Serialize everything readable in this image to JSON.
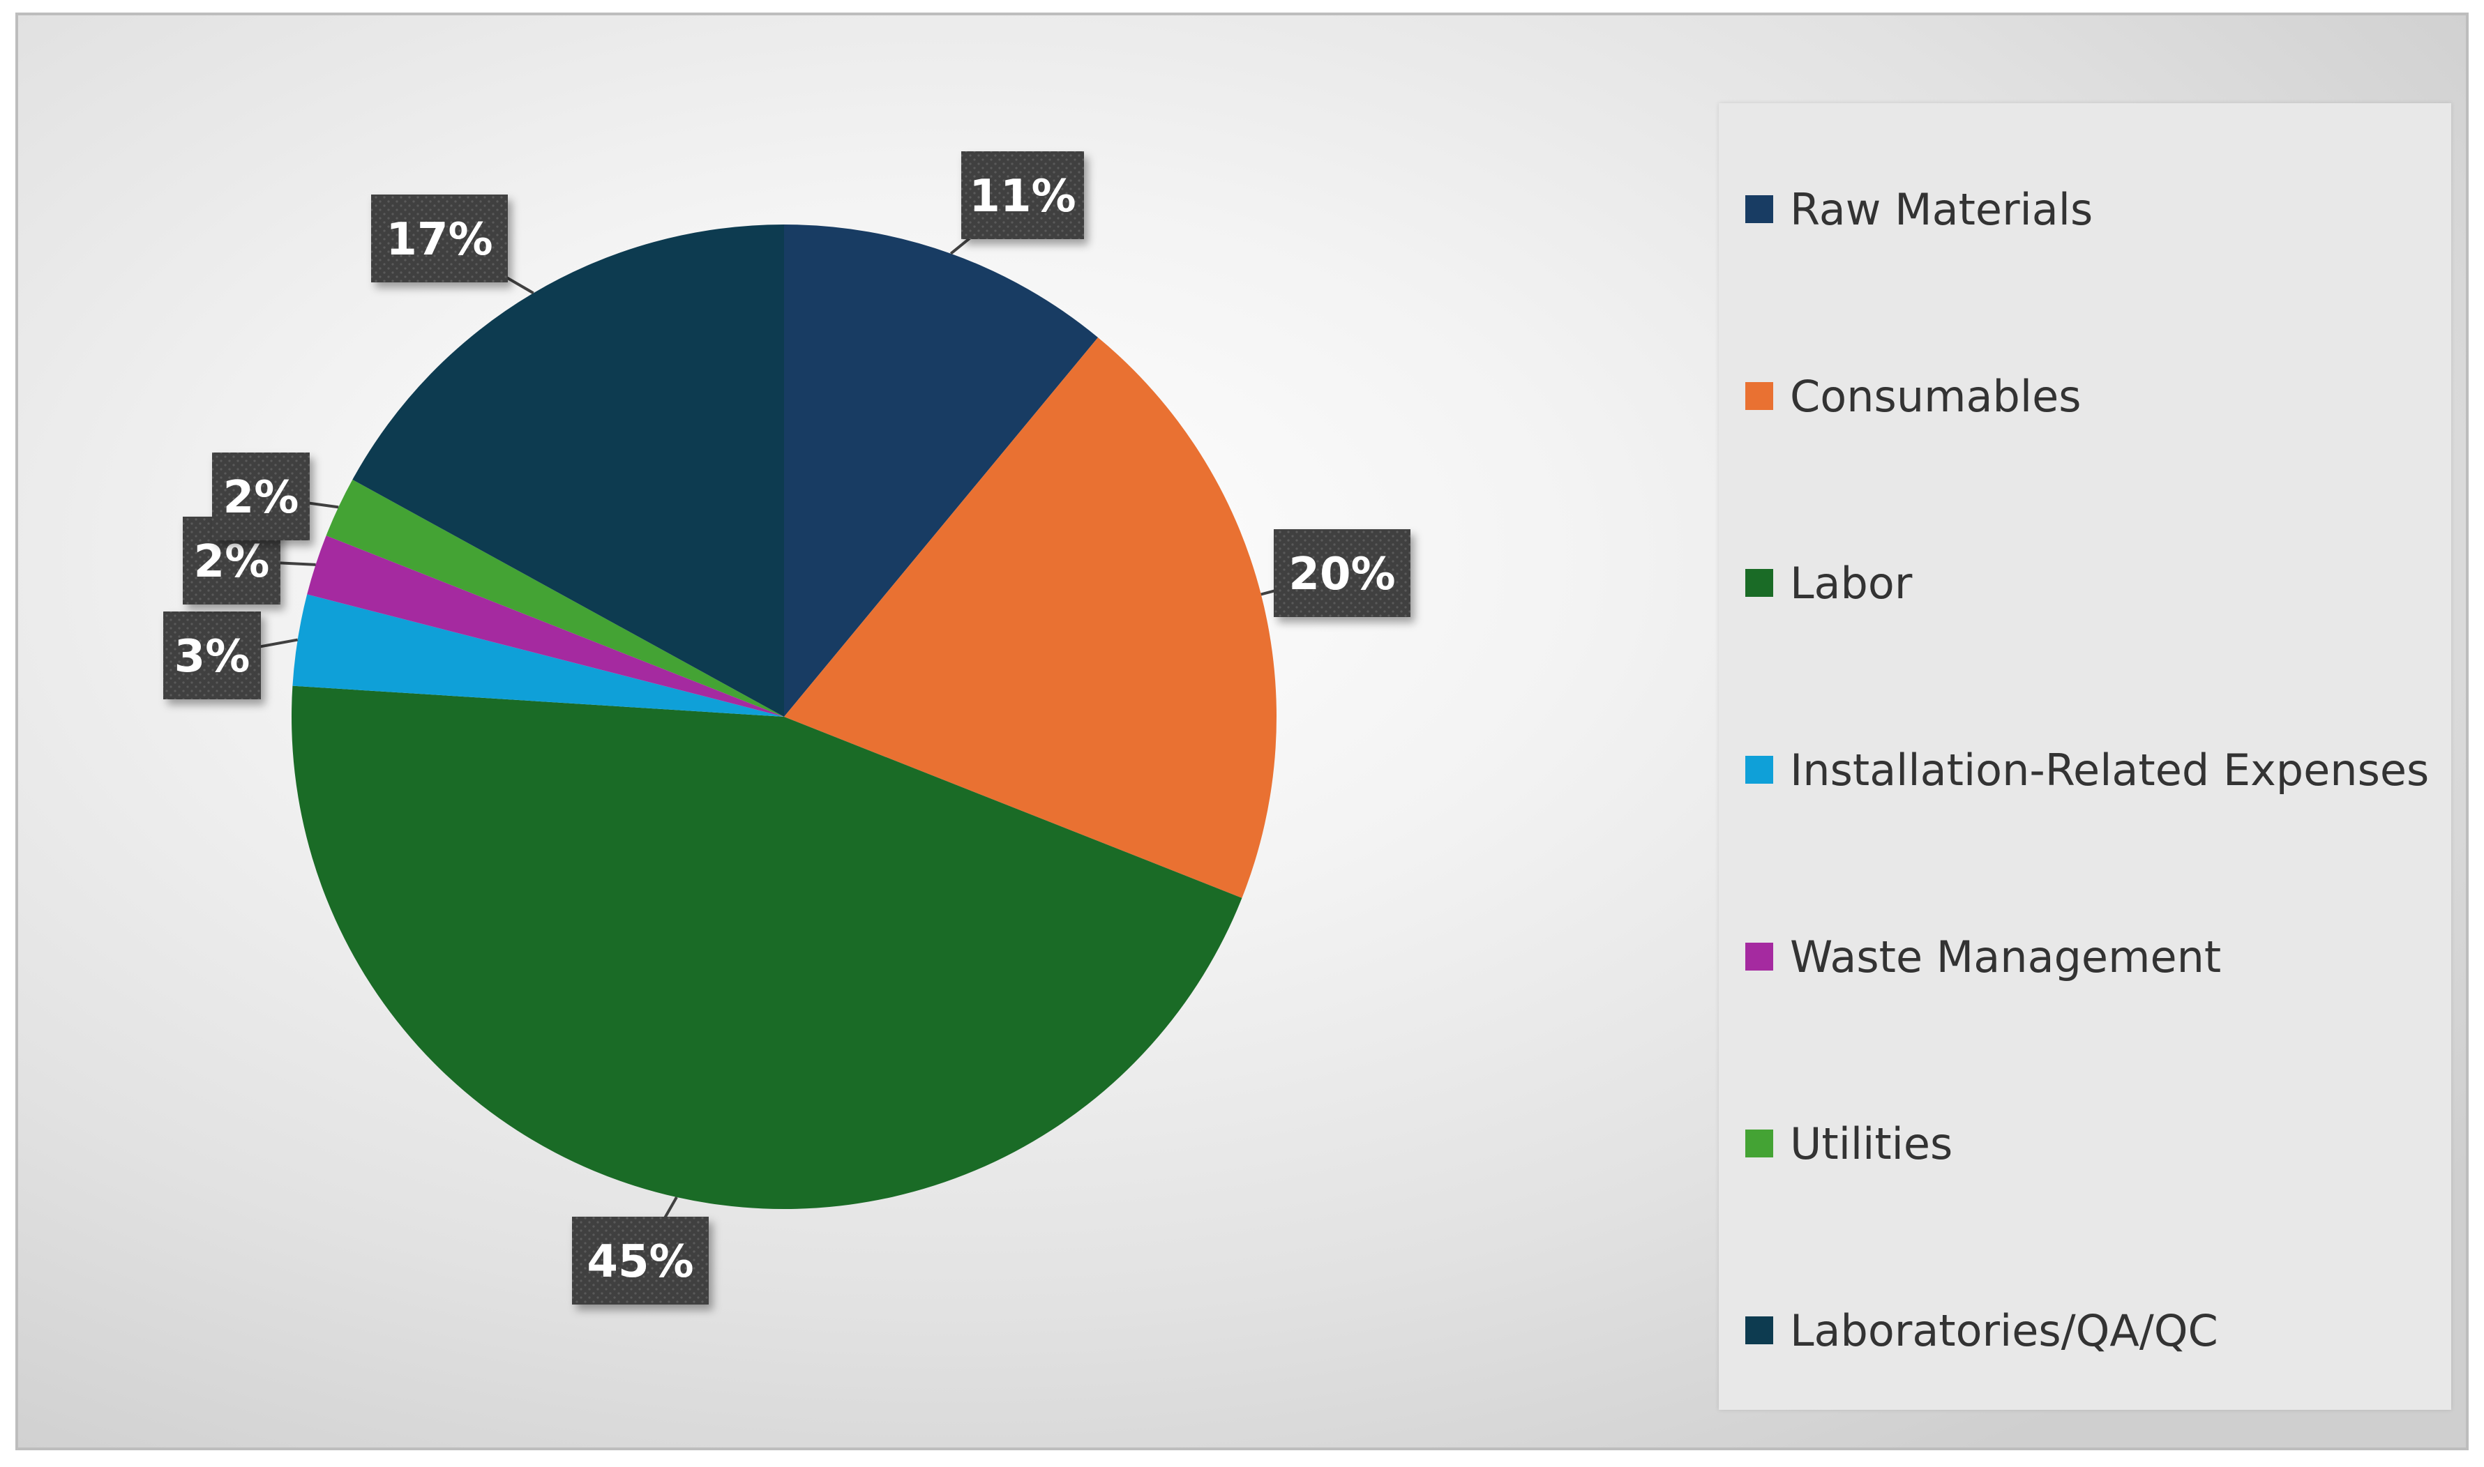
{
  "chart_data": {
    "type": "pie",
    "title": "",
    "legend_position": "right",
    "categories": [
      "Raw Materials",
      "Consumables",
      "Labor",
      "Installation-Related Expenses",
      "Waste Management",
      "Utilities",
      "Laboratories/QA/QC"
    ],
    "values": [
      11,
      20,
      45,
      3,
      2,
      2,
      17
    ],
    "data_labels": [
      "11%",
      "20%",
      "45%",
      "3%",
      "2%",
      "2%",
      "17%"
    ],
    "colors": [
      "#183c63",
      "#e97132",
      "#1a6b26",
      "#0fa0d8",
      "#a52aa0",
      "#44a334",
      "#0d3b50"
    ]
  },
  "label_style": {
    "box_color": "#404040",
    "text_color": "#ffffff"
  }
}
